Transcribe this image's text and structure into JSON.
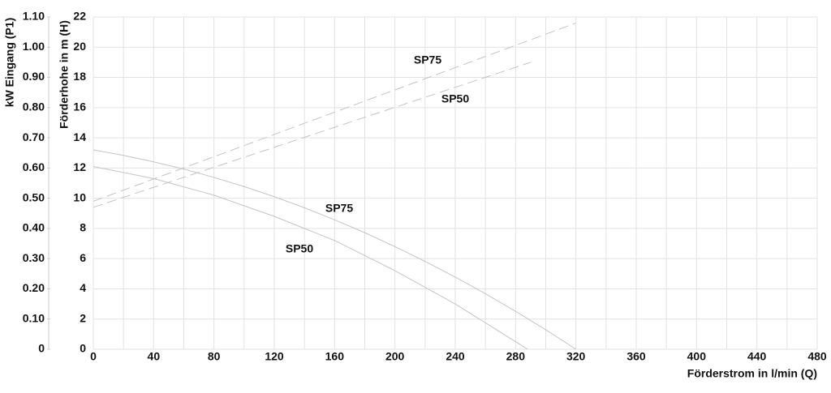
{
  "chart_data": {
    "type": "line",
    "x_label": "Förderstrom in l/min (Q)",
    "y_label": "Förderhohe in m (H)",
    "y2_label": "kW Eingang (P1)",
    "xlim": [
      0,
      480
    ],
    "xticks": [
      0,
      40,
      80,
      120,
      160,
      200,
      240,
      280,
      320,
      360,
      400,
      440,
      480
    ],
    "ylim": [
      0,
      22
    ],
    "yticks": [
      0,
      2,
      4,
      6,
      8,
      10,
      12,
      14,
      16,
      18,
      20,
      22
    ],
    "y2lim": [
      0,
      1.1
    ],
    "y2ticks": [
      0,
      {
        "value": 0.1,
        "label": "0.10"
      },
      {
        "value": 0.2,
        "label": "0.20"
      },
      {
        "value": 0.3,
        "label": "0.30"
      },
      {
        "value": 0.4,
        "label": "0.40"
      },
      {
        "value": 0.5,
        "label": "0.50"
      },
      {
        "value": 0.6,
        "label": "0.60"
      },
      {
        "value": 0.7,
        "label": "0.70"
      },
      {
        "value": 0.8,
        "label": "0.80"
      },
      {
        "value": 0.9,
        "label": "0.90"
      },
      {
        "value": 1,
        "label": "1.00"
      },
      {
        "value": 1.1,
        "label": "1.10"
      }
    ],
    "grid": true,
    "series": [
      {
        "name": "SP75",
        "color": "#c4c4c4",
        "dashed": false,
        "x": [
          0,
          20,
          40,
          60,
          80,
          100,
          120,
          140,
          160,
          180,
          200,
          220,
          240,
          260,
          280,
          300,
          320
        ],
        "values": [
          13.2,
          12.84,
          12.41,
          11.93,
          11.38,
          10.77,
          10.1,
          9.37,
          8.57,
          7.72,
          6.8,
          5.82,
          4.78,
          3.68,
          2.51,
          1.29,
          0
        ]
      },
      {
        "name": "SP50",
        "color": "#c4c4c4",
        "dashed": false,
        "x": [
          0,
          40,
          80,
          120,
          160,
          200,
          240,
          280,
          288
        ],
        "values": [
          12.1,
          11.3,
          10.2,
          8.8,
          7.2,
          5.2,
          3.0,
          0.5,
          0
        ]
      },
      {
        "name": "SP75",
        "color": "#c4c4c4",
        "dashed": true,
        "axis": "y2",
        "x": [
          0,
          320
        ],
        "values": [
          0.49,
          1.08
        ]
      },
      {
        "name": "SP50",
        "color": "#c4c4c4",
        "dashed": true,
        "axis": "y2",
        "x": [
          0,
          290
        ],
        "values": [
          0.47,
          0.95
        ]
      }
    ]
  }
}
